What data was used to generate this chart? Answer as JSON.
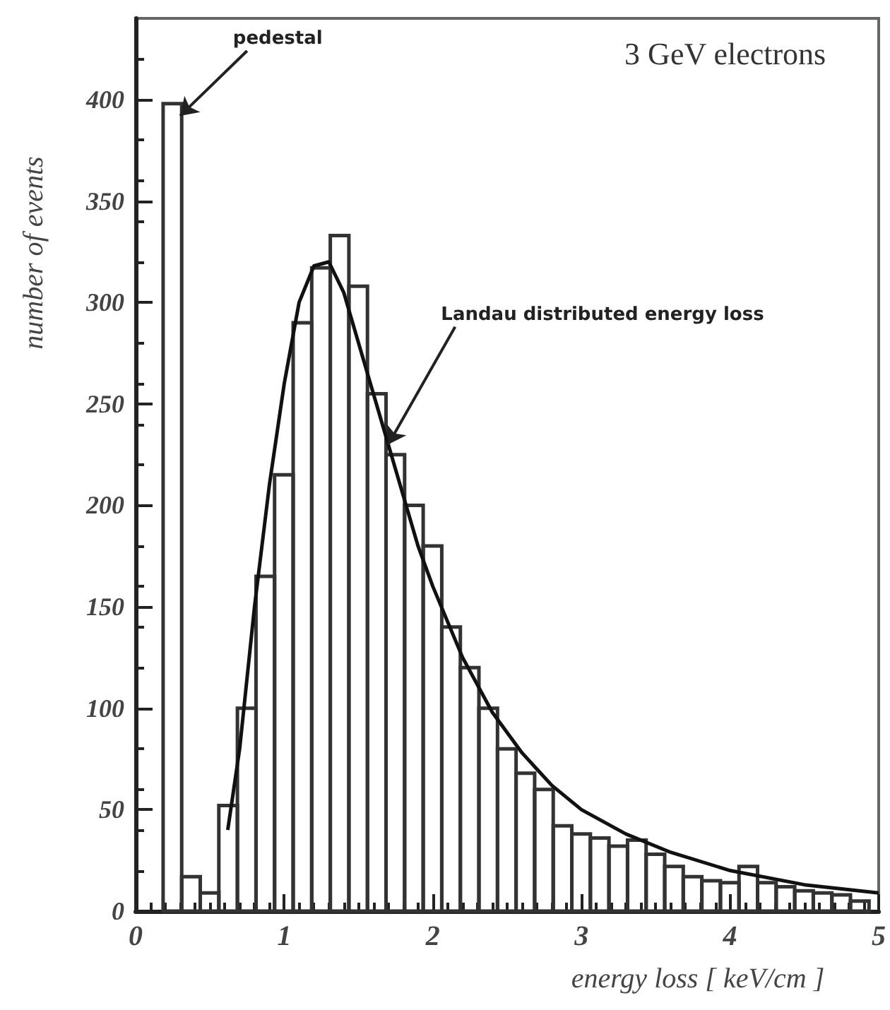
{
  "chart_data": {
    "type": "histogram",
    "title": "3 GeV electrons",
    "xlabel": "energy loss [ keV/cm ]",
    "ylabel": "number of events",
    "xlim": [
      0,
      5
    ],
    "xticks": [
      0,
      1,
      2,
      3,
      4,
      5
    ],
    "ylim": [
      0,
      440
    ],
    "yticks": [
      0,
      50,
      100,
      150,
      200,
      250,
      300,
      350,
      400
    ],
    "grid": false,
    "marker": "none",
    "annotations": [
      {
        "text": "pedestal",
        "x": 0.3,
        "y": 392
      },
      {
        "text": "Landau distributed energy loss",
        "x": 1.7,
        "y": 230
      }
    ],
    "series": [
      {
        "color": "#333333",
        "bins": [
          0.185,
          0.31,
          0.435,
          0.56,
          0.685,
          0.81,
          0.935,
          1.06,
          1.185,
          1.31,
          1.435,
          1.56,
          1.685,
          1.81,
          1.935,
          2.06,
          2.185,
          2.31,
          2.435,
          2.56,
          2.685,
          2.81,
          2.935,
          3.06,
          3.185,
          3.31,
          3.435,
          3.56,
          3.685,
          3.81,
          3.935,
          4.06,
          4.185,
          4.31,
          4.435,
          4.56,
          4.685,
          4.81,
          4.935
        ],
        "values": [
          398,
          17,
          9,
          52,
          100,
          165,
          215,
          290,
          317,
          333,
          308,
          255,
          225,
          200,
          180,
          140,
          120,
          100,
          80,
          68,
          60,
          42,
          38,
          36,
          32,
          35,
          28,
          22,
          17,
          15,
          14,
          22,
          14,
          12,
          10,
          9,
          8,
          5
        ]
      },
      {
        "type": "line",
        "color": "#111111",
        "x": [
          0.62,
          0.7,
          0.8,
          0.9,
          1.0,
          1.1,
          1.2,
          1.3,
          1.4,
          1.5,
          1.6,
          1.7,
          1.8,
          1.9,
          2.0,
          2.2,
          2.4,
          2.6,
          2.8,
          3.0,
          3.3,
          3.6,
          4.0,
          4.5,
          5.0
        ],
        "values": [
          40,
          80,
          150,
          210,
          260,
          300,
          318,
          320,
          305,
          280,
          255,
          230,
          205,
          180,
          160,
          125,
          98,
          78,
          62,
          50,
          38,
          29,
          20,
          13,
          9
        ]
      }
    ]
  }
}
